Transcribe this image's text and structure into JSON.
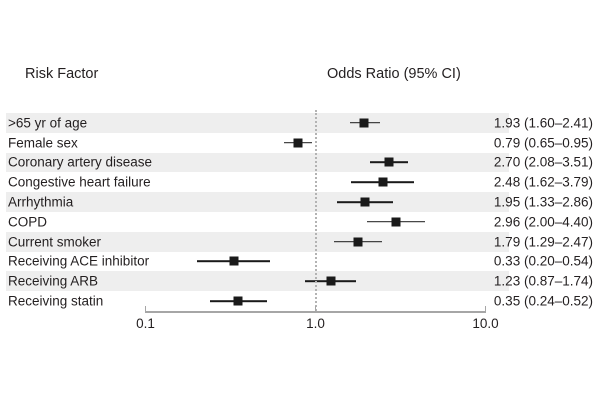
{
  "chart_data": {
    "type": "forest",
    "title": "",
    "headers": {
      "risk_factor": "Risk Factor",
      "odds_ratio": "Odds Ratio (95% CI)"
    },
    "x_axis": {
      "scale": "log10",
      "range": [
        0.1,
        10
      ],
      "reference_line": 1.0,
      "ticks": [
        {
          "label": "0.1",
          "value": 0.1
        },
        {
          "label": "1.0",
          "value": 1
        },
        {
          "label": "10.0",
          "value": 10
        }
      ]
    },
    "rows": [
      {
        "label": ">65 yr of age",
        "or": 1.93,
        "ci_low": 1.6,
        "ci_high": 2.41,
        "display": "1.93 (1.60–2.41)"
      },
      {
        "label": "Female sex",
        "or": 0.79,
        "ci_low": 0.65,
        "ci_high": 0.95,
        "display": "0.79 (0.65–0.95)"
      },
      {
        "label": "Coronary artery disease",
        "or": 2.7,
        "ci_low": 2.08,
        "ci_high": 3.51,
        "display": "2.70 (2.08–3.51)"
      },
      {
        "label": "Congestive heart failure",
        "or": 2.48,
        "ci_low": 1.62,
        "ci_high": 3.79,
        "display": "2.48 (1.62–3.79)"
      },
      {
        "label": "Arrhythmia",
        "or": 1.95,
        "ci_low": 1.33,
        "ci_high": 2.86,
        "display": "1.95 (1.33–2.86)"
      },
      {
        "label": "COPD",
        "or": 2.96,
        "ci_low": 2.0,
        "ci_high": 4.4,
        "display": "2.96 (2.00–4.40)"
      },
      {
        "label": "Current smoker",
        "or": 1.79,
        "ci_low": 1.29,
        "ci_high": 2.47,
        "display": "1.79 (1.29–2.47)"
      },
      {
        "label": "Receiving ACE inhibitor",
        "or": 0.33,
        "ci_low": 0.2,
        "ci_high": 0.54,
        "display": "0.33 (0.20–0.54)"
      },
      {
        "label": "Receiving ARB",
        "or": 1.23,
        "ci_low": 0.87,
        "ci_high": 1.74,
        "display": "1.23 (0.87–1.74)"
      },
      {
        "label": "Receiving statin",
        "or": 0.35,
        "ci_low": 0.24,
        "ci_high": 0.52,
        "display": "0.35 (0.24–0.52)"
      }
    ],
    "legend": "none",
    "grid": "off",
    "colors": {
      "marker": "#1a1a1a",
      "ci_line": "#1a1a1a",
      "row_stripe": "#eeeeee",
      "axis": "#a6a6a6",
      "reference_line": "#b3b3b3",
      "text": "#231f20",
      "background": "#ffffff"
    }
  }
}
